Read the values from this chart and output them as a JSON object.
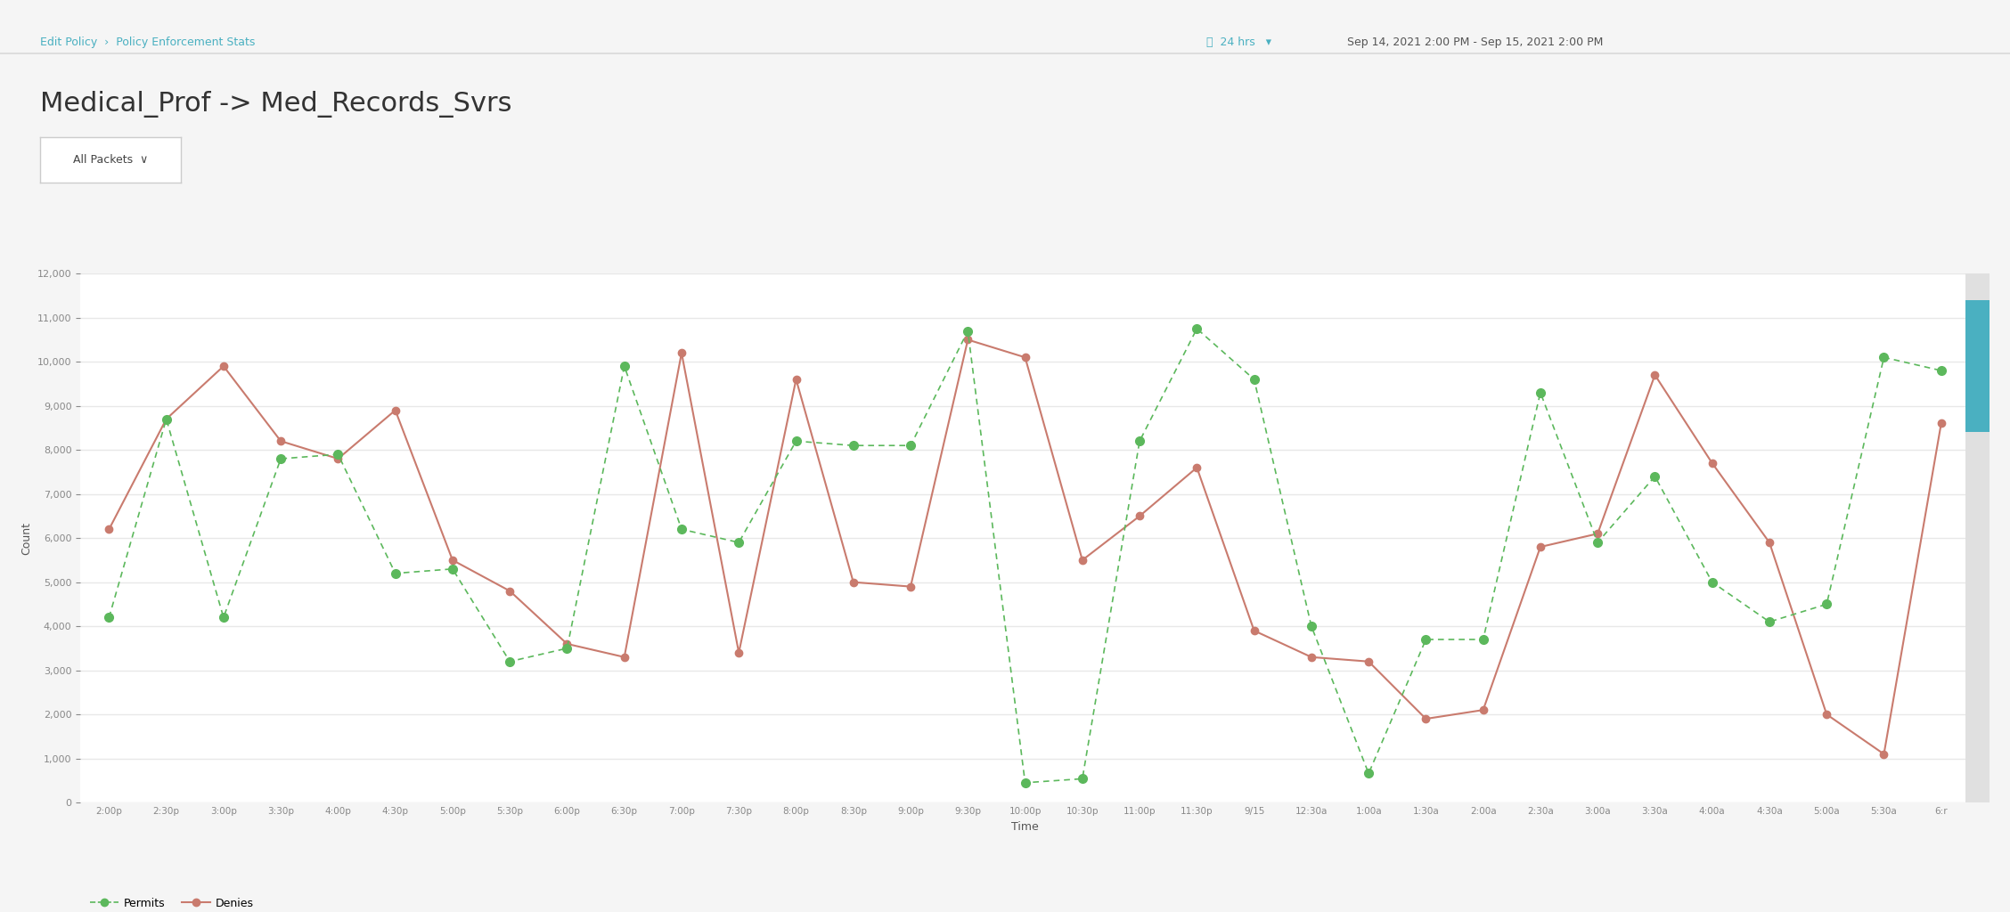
{
  "title": "Medical_Prof -> Med_Records_Svrs",
  "subtitle": "Edit Policy  >  Policy Enforcement Stats",
  "xlabel": "Time",
  "ylabel": "Count",
  "date_range": "Sep 14, 2021 2:00 PM - Sep 15, 2021 2:00 PM",
  "time_window": "24 hrs",
  "ylim": [
    0,
    12000
  ],
  "yticks": [
    0,
    1000,
    2000,
    3000,
    4000,
    5000,
    6000,
    7000,
    8000,
    9000,
    10000,
    11000,
    12000
  ],
  "x_labels": [
    "2:00p",
    "2:30p",
    "3:00p",
    "3:30p",
    "4:00p",
    "4:30p",
    "5:00p",
    "5:30p",
    "6:00p",
    "6:30p",
    "7:00p",
    "7:30p",
    "8:00p",
    "8:30p",
    "9:00p",
    "9:30p",
    "10:00p",
    "10:30p",
    "11:00p",
    "11:30p",
    "9/15",
    "12:30a",
    "1:00a",
    "1:30a",
    "2:00a",
    "2:30a",
    "3:00a",
    "3:30a",
    "4:00a",
    "4:30a",
    "5:00a",
    "5:30a",
    "6:r"
  ],
  "permits": [
    4200,
    8700,
    4200,
    7800,
    7900,
    5200,
    5300,
    3200,
    3500,
    9900,
    6200,
    5900,
    8200,
    8100,
    8100,
    10700,
    450,
    540,
    8200,
    10750,
    9600,
    4000,
    660,
    3700,
    3700,
    9300,
    5900,
    7400,
    5000,
    4100,
    4500,
    10100,
    9800
  ],
  "denies": [
    6200,
    8700,
    9900,
    8200,
    7800,
    8900,
    5500,
    4800,
    3600,
    3300,
    10200,
    3400,
    9600,
    5000,
    4900,
    10500,
    10100,
    5500,
    6500,
    7600,
    3900,
    3300,
    3200,
    1900,
    2100,
    5800,
    6100,
    9700,
    7700,
    5900,
    2000,
    1100,
    8600
  ],
  "permit_color": "#5cb85c",
  "deny_color": "#c97b6e",
  "bg_color": "#ffffff",
  "grid_color": "#e8e8e8",
  "axis_label_color": "#555555",
  "tick_color": "#888888"
}
